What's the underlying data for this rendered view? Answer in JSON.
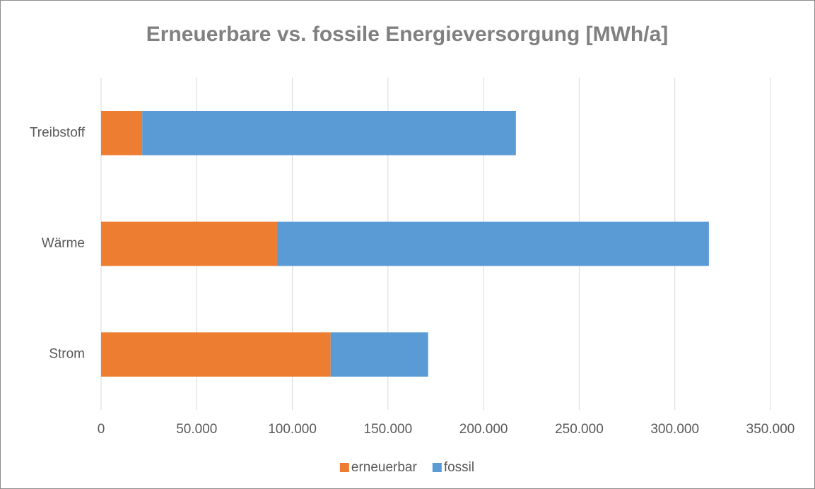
{
  "chart_data": {
    "type": "stacked_bar_horizontal",
    "title": "Erneuerbare vs. fossile Energieversorgung [MWh/a]",
    "categories": [
      "Strom",
      "Wärme",
      "Treibstoff"
    ],
    "series": [
      {
        "name": "erneuerbar",
        "color": "#ed7d31",
        "values": [
          120000,
          92000,
          21500
        ]
      },
      {
        "name": "fossil",
        "color": "#5b9bd5",
        "values": [
          51000,
          225800,
          195400
        ]
      }
    ],
    "xlim": [
      0,
      350000
    ],
    "xticks": [
      0,
      {
        "value": 50000,
        "label": "50.000"
      },
      {
        "value": 100000,
        "label": "100.000"
      },
      {
        "value": 150000,
        "label": "150.000"
      },
      {
        "value": 200000,
        "label": "200.000"
      },
      {
        "value": 250000,
        "label": "250.000"
      },
      {
        "value": 300000,
        "label": "300.000"
      },
      {
        "value": 350000,
        "label": "350.000"
      }
    ],
    "grid": true,
    "legend": "bottom"
  }
}
